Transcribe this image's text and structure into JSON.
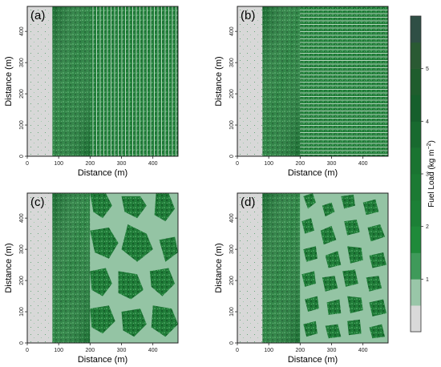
{
  "chart_data": {
    "type": "heatmap",
    "panels": [
      {
        "label": "(a)",
        "treatment": "vertical-strips",
        "xlabel": "Distance (m)",
        "ylabel": "Distance (m)",
        "xticks": [
          0,
          100,
          200,
          300,
          400
        ],
        "yticks": [
          0,
          100,
          200,
          300,
          400
        ],
        "xlim": [
          0,
          480
        ],
        "ylim": [
          0,
          480
        ]
      },
      {
        "label": "(b)",
        "treatment": "horizontal-strips",
        "xlabel": "Distance (m)",
        "ylabel": "Distance (m)",
        "xticks": [
          0,
          100,
          200,
          300,
          400
        ],
        "yticks": [
          0,
          100,
          200,
          300,
          400
        ],
        "xlim": [
          0,
          480
        ],
        "ylim": [
          0,
          480
        ]
      },
      {
        "label": "(c)",
        "treatment": "large-patches",
        "xlabel": "Distance (m)",
        "ylabel": "Distance (m)",
        "xticks": [
          0,
          100,
          200,
          300,
          400
        ],
        "yticks": [
          0,
          100,
          200,
          300,
          400
        ],
        "xlim": [
          0,
          480
        ],
        "ylim": [
          0,
          480
        ]
      },
      {
        "label": "(d)",
        "treatment": "small-patches",
        "xlabel": "Distance (m)",
        "ylabel": "Distance (m)",
        "xticks": [
          0,
          100,
          200,
          300,
          400
        ],
        "yticks": [
          0,
          100,
          200,
          300,
          400
        ],
        "xlim": [
          0,
          480
        ],
        "ylim": [
          0,
          480
        ]
      }
    ],
    "zones": [
      {
        "range": [
          0,
          80
        ],
        "description": "sparse fuel"
      },
      {
        "range": [
          80,
          200
        ],
        "description": "untreated dense fuel"
      },
      {
        "range": [
          200,
          480
        ],
        "description": "treatment area"
      }
    ],
    "colorbar": {
      "label_main": "Fuel Load (kg m",
      "label_sup": "−2",
      "label_end": ")",
      "ticks": [
        1,
        2,
        3,
        4,
        5
      ],
      "range": [
        0,
        6
      ],
      "colors": [
        "#d9d9d9",
        "#99c6a8",
        "#3f9a5a",
        "#1f8a3a",
        "#1c8036",
        "#1b7a33",
        "#1a7431",
        "#186a2f",
        "#165f2c",
        "#1f5d2d",
        "#2a5a33",
        "#2f4f45"
      ]
    }
  }
}
